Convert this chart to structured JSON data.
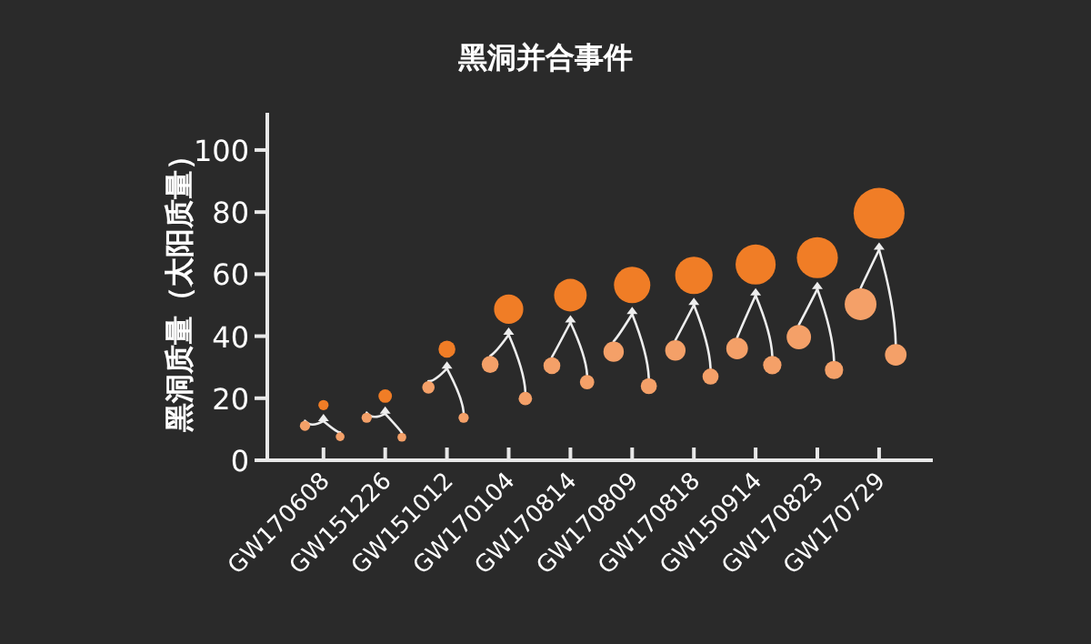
{
  "chart_data": {
    "type": "bubble",
    "title": "黑洞并合事件",
    "ylabel": "黑洞质量（太阳质量）",
    "categories": [
      "GW170608",
      "GW151226",
      "GW151012",
      "GW170104",
      "GW170814",
      "GW170809",
      "GW170818",
      "GW150914",
      "GW170823",
      "GW170729"
    ],
    "ylim": [
      0,
      112
    ],
    "yticks": [
      0,
      20,
      40,
      60,
      80,
      100
    ],
    "series": [
      {
        "color": "#f4a068",
        "values": [
          11.1,
          13.7,
          23.5,
          30.9,
          30.5,
          35,
          35.4,
          36,
          39.7,
          50.3
        ],
        "sizes": [
          0.04,
          0.04,
          0.06,
          0.11,
          0.11,
          0.16,
          0.16,
          0.18,
          0.23,
          0.39
        ]
      },
      {
        "color": "#f4a068",
        "values": [
          7.6,
          7.4,
          13.7,
          19.9,
          25.2,
          23.9,
          27,
          30.7,
          29.1,
          34
        ],
        "sizes": [
          0.03,
          0.03,
          0.04,
          0.07,
          0.08,
          0.1,
          0.1,
          0.13,
          0.13,
          0.18
        ]
      },
      {
        "color": "#f07d26",
        "values": [
          17.8,
          20.7,
          35.8,
          48.7,
          53.2,
          56.5,
          59.6,
          63.1,
          65.3,
          79.6
        ],
        "sizes": [
          0.04,
          0.07,
          0.11,
          0.33,
          0.41,
          0.51,
          0.54,
          0.62,
          0.65,
          1
        ]
      }
    ]
  }
}
